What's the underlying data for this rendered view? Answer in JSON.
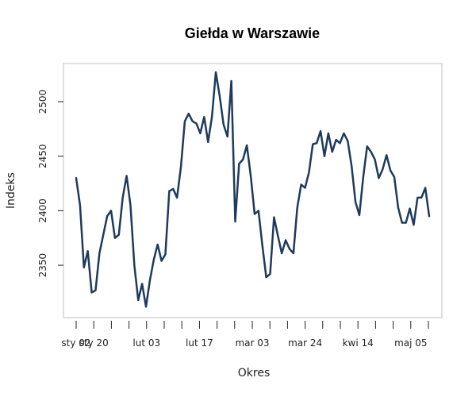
{
  "chart_data": {
    "type": "line",
    "title": "Giełda w Warszawie",
    "xlabel": "Okres",
    "ylabel": "Indeks",
    "ylim": [
      2302,
      2535
    ],
    "y_ticks": [
      2350,
      2400,
      2450,
      2500
    ],
    "x_tick_labels": [
      "sty 02",
      "sty 20",
      "lut 03",
      "lut 17",
      "mar 03",
      "mar 24",
      "kwi 14",
      "maj 05"
    ],
    "labeled_tick_index": [
      0,
      1,
      4,
      7,
      10,
      13,
      16,
      19
    ],
    "total_ticks": 21,
    "grid": false,
    "line_color": "#1e3a5c",
    "series": [
      {
        "values": [
          2430,
          2405,
          2348,
          2363,
          2325,
          2327,
          2361,
          2378,
          2395,
          2400,
          2375,
          2378,
          2412,
          2432,
          2405,
          2350,
          2318,
          2333,
          2312,
          2336,
          2355,
          2369,
          2354,
          2360,
          2418,
          2420,
          2412,
          2440,
          2482,
          2489,
          2482,
          2480,
          2471,
          2486,
          2463,
          2486,
          2527,
          2505,
          2479,
          2468,
          2519,
          2390,
          2443,
          2447,
          2460,
          2432,
          2397,
          2400,
          2368,
          2339,
          2342,
          2394,
          2377,
          2361,
          2373,
          2365,
          2361,
          2403,
          2424,
          2421,
          2435,
          2461,
          2462,
          2473,
          2450,
          2471,
          2454,
          2465,
          2462,
          2471,
          2464,
          2441,
          2408,
          2396,
          2431,
          2459,
          2454,
          2447,
          2430,
          2438,
          2451,
          2437,
          2431,
          2403,
          2389,
          2389,
          2402,
          2387,
          2412,
          2412,
          2421,
          2395
        ]
      }
    ]
  }
}
